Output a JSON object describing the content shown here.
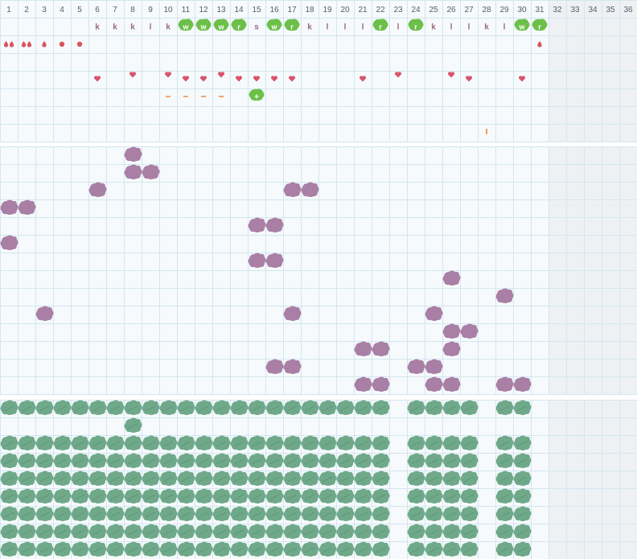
{
  "days": [
    "1",
    "2",
    "3",
    "4",
    "5",
    "6",
    "7",
    "8",
    "9",
    "10",
    "11",
    "12",
    "13",
    "14",
    "15",
    "16",
    "17",
    "18",
    "19",
    "20",
    "21",
    "22",
    "23",
    "24",
    "25",
    "26",
    "27",
    "28",
    "29",
    "30",
    "31",
    "32",
    "33",
    "34",
    "35",
    "36"
  ],
  "active_days": 31,
  "activity_row": [
    {
      "day": 6,
      "label": "k",
      "badge": false
    },
    {
      "day": 7,
      "label": "k",
      "badge": false
    },
    {
      "day": 8,
      "label": "k",
      "badge": false
    },
    {
      "day": 9,
      "label": "l",
      "badge": false
    },
    {
      "day": 10,
      "label": "k",
      "badge": false
    },
    {
      "day": 11,
      "label": "w",
      "badge": true
    },
    {
      "day": 12,
      "label": "w",
      "badge": true
    },
    {
      "day": 13,
      "label": "w",
      "badge": true
    },
    {
      "day": 14,
      "label": "r",
      "badge": true
    },
    {
      "day": 15,
      "label": "s",
      "badge": false
    },
    {
      "day": 16,
      "label": "w",
      "badge": true
    },
    {
      "day": 17,
      "label": "r",
      "badge": true
    },
    {
      "day": 18,
      "label": "k",
      "badge": false
    },
    {
      "day": 19,
      "label": "l",
      "badge": false
    },
    {
      "day": 20,
      "label": "l",
      "badge": false
    },
    {
      "day": 21,
      "label": "l",
      "badge": false
    },
    {
      "day": 22,
      "label": "r",
      "badge": true
    },
    {
      "day": 23,
      "label": "l",
      "badge": false
    },
    {
      "day": 24,
      "label": "r",
      "badge": true
    },
    {
      "day": 25,
      "label": "k",
      "badge": false
    },
    {
      "day": 26,
      "label": "l",
      "badge": false
    },
    {
      "day": 27,
      "label": "l",
      "badge": false
    },
    {
      "day": 28,
      "label": "k",
      "badge": false
    },
    {
      "day": 29,
      "label": "l",
      "badge": false
    },
    {
      "day": 30,
      "label": "w",
      "badge": true
    },
    {
      "day": 31,
      "label": "r",
      "badge": true
    }
  ],
  "flow_row": [
    {
      "day": 1,
      "marker": "drop",
      "count": 2
    },
    {
      "day": 2,
      "marker": "drop",
      "count": 2
    },
    {
      "day": 3,
      "marker": "drop",
      "count": 1
    },
    {
      "day": 4,
      "marker": "dot",
      "count": 1
    },
    {
      "day": 5,
      "marker": "dot",
      "count": 1
    },
    {
      "day": 31,
      "marker": "drop",
      "count": 1
    }
  ],
  "heart_days": [
    6,
    8,
    10,
    11,
    12,
    13,
    14,
    15,
    16,
    17,
    21,
    23,
    26,
    27,
    30
  ],
  "dash_days": [
    10,
    11,
    12,
    13
  ],
  "plus_badge": {
    "day": 15,
    "label": "+"
  },
  "tick_days": [
    28
  ],
  "mood_marks": [
    {
      "day": 8,
      "level": 0
    },
    {
      "day": 8,
      "level": 1
    },
    {
      "day": 9,
      "level": 1
    },
    {
      "day": 6,
      "level": 2
    },
    {
      "day": 17,
      "level": 2
    },
    {
      "day": 18,
      "level": 2
    },
    {
      "day": 1,
      "level": 3
    },
    {
      "day": 2,
      "level": 3
    },
    {
      "day": 15,
      "level": 4
    },
    {
      "day": 16,
      "level": 4
    },
    {
      "day": 1,
      "level": 5
    },
    {
      "day": 15,
      "level": 6
    },
    {
      "day": 16,
      "level": 6
    },
    {
      "day": 26,
      "level": 7
    },
    {
      "day": 29,
      "level": 8
    },
    {
      "day": 3,
      "level": 9
    },
    {
      "day": 17,
      "level": 9
    },
    {
      "day": 25,
      "level": 9
    },
    {
      "day": 26,
      "level": 10
    },
    {
      "day": 27,
      "level": 10
    },
    {
      "day": 21,
      "level": 11
    },
    {
      "day": 22,
      "level": 11
    },
    {
      "day": 26,
      "level": 11
    },
    {
      "day": 16,
      "level": 12
    },
    {
      "day": 17,
      "level": 12
    },
    {
      "day": 24,
      "level": 12
    },
    {
      "day": 25,
      "level": 12
    },
    {
      "day": 21,
      "level": 13
    },
    {
      "day": 22,
      "level": 13
    },
    {
      "day": 25,
      "level": 13
    },
    {
      "day": 26,
      "level": 13
    },
    {
      "day": 29,
      "level": 13
    },
    {
      "day": 30,
      "level": 13
    }
  ],
  "leaf_rows": [
    {
      "row": 0,
      "days": [
        1,
        2,
        3,
        4,
        5,
        6,
        7,
        8,
        9,
        10,
        11,
        12,
        13,
        14,
        15,
        16,
        17,
        18,
        19,
        20,
        21,
        22,
        24,
        25,
        26,
        27,
        29,
        30
      ]
    },
    {
      "row": 1,
      "days": [
        8
      ]
    },
    {
      "row": 2,
      "days": [
        1,
        2,
        3,
        4,
        5,
        6,
        7,
        8,
        9,
        10,
        11,
        12,
        13,
        14,
        15,
        16,
        17,
        18,
        19,
        20,
        21,
        22,
        24,
        25,
        26,
        27,
        29,
        30
      ]
    },
    {
      "row": 3,
      "days": [
        1,
        2,
        3,
        4,
        5,
        6,
        7,
        8,
        9,
        10,
        11,
        12,
        13,
        14,
        15,
        16,
        17,
        18,
        19,
        20,
        21,
        22,
        24,
        25,
        26,
        27,
        29,
        30
      ]
    },
    {
      "row": 4,
      "days": [
        1,
        2,
        3,
        4,
        5,
        6,
        7,
        8,
        9,
        10,
        11,
        12,
        13,
        14,
        15,
        16,
        17,
        18,
        19,
        20,
        21,
        22,
        24,
        25,
        26,
        27,
        29,
        30
      ]
    },
    {
      "row": 5,
      "days": [
        1,
        2,
        3,
        4,
        5,
        6,
        7,
        8,
        9,
        10,
        11,
        12,
        13,
        14,
        15,
        16,
        17,
        18,
        19,
        20,
        21,
        22,
        24,
        25,
        26,
        27,
        29,
        30
      ]
    },
    {
      "row": 6,
      "days": [
        1,
        2,
        3,
        4,
        5,
        6,
        7,
        8,
        9,
        10,
        11,
        12,
        13,
        14,
        15,
        16,
        17,
        18,
        19,
        20,
        21,
        22,
        24,
        25,
        26,
        27,
        29,
        30
      ]
    },
    {
      "row": 7,
      "days": [
        1,
        2,
        3,
        4,
        5,
        6,
        7,
        8,
        9,
        10,
        11,
        12,
        13,
        14,
        15,
        16,
        17,
        18,
        19,
        20,
        21,
        22,
        24,
        25,
        26,
        27,
        29,
        30
      ]
    },
    {
      "row": 8,
      "days": [
        1,
        2,
        3,
        4,
        5,
        6,
        7,
        8,
        9,
        10,
        11,
        12,
        13,
        14,
        15,
        16,
        17,
        18,
        19,
        20,
        21,
        22,
        24,
        25,
        26,
        27,
        29,
        30
      ]
    }
  ],
  "colors": {
    "badge": "#6cc04a",
    "mood": "#a97fa5",
    "leaf": "#6fa98a",
    "heart": "#d9546e",
    "flow": "#d9545a",
    "accent": "#f08a3a"
  }
}
